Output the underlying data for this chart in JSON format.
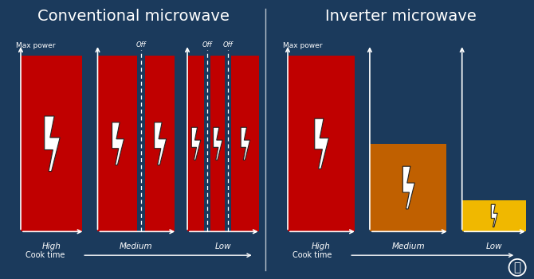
{
  "bg_color": "#1b3a5c",
  "title_left": "Conventional microwave",
  "title_right": "Inverter microwave",
  "title_fontsize": 14,
  "text_color": "white",
  "red_color": "#c00000",
  "orange_color": "#c06000",
  "yellow_color": "#f0b800",
  "gap_color": "#1b3a5c",
  "max_power_label": "Max power",
  "cook_time_label": "Cook time",
  "off_label": "Off",
  "conv_labels": [
    "High",
    "Medium",
    "Low"
  ],
  "inv_labels": [
    "High",
    "Medium",
    "Low"
  ]
}
